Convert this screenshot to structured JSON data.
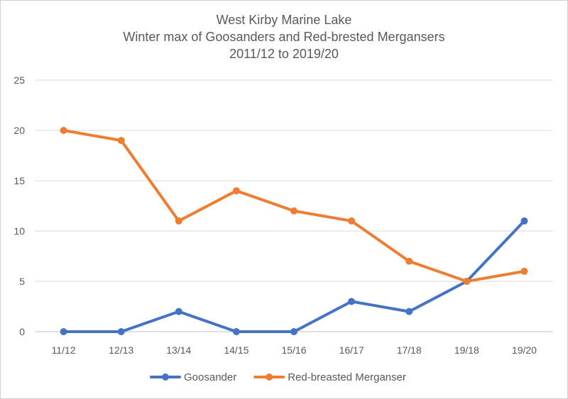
{
  "chart_data": {
    "type": "line",
    "title_lines": [
      "West Kirby Marine Lake",
      "Winter max of Goosanders and Red-brested Mergansers",
      "2011/12 to 2019/20"
    ],
    "categories": [
      "11/12",
      "12/13",
      "13/14",
      "14/15",
      "15/16",
      "16/17",
      "17/18",
      "19/18",
      "19/20"
    ],
    "ylim": [
      0,
      25
    ],
    "yticks": [
      0,
      5,
      10,
      15,
      20,
      25
    ],
    "grid": true,
    "legend_position": "bottom",
    "series": [
      {
        "name": "Goosander",
        "color": "#4472c4",
        "values": [
          0,
          0,
          2,
          0,
          0,
          3,
          2,
          5,
          11
        ]
      },
      {
        "name": "Red-breasted Merganser",
        "color": "#ed7d31",
        "values": [
          20,
          19,
          11,
          14,
          12,
          11,
          7,
          5,
          6
        ]
      }
    ]
  }
}
